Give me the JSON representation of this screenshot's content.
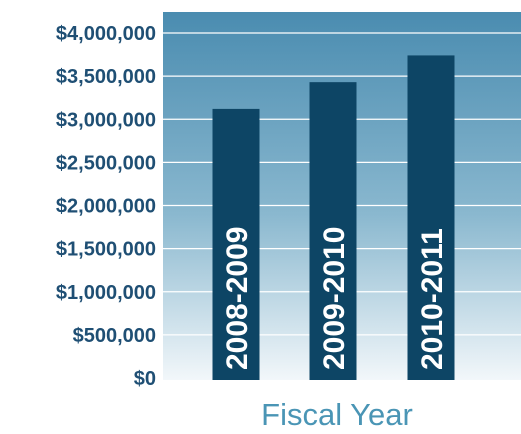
{
  "chart_data": {
    "type": "bar",
    "title": "",
    "xlabel": "Fiscal Year",
    "ylabel": "",
    "categories": [
      "2008-2009",
      "2009-2010",
      "2010-2011"
    ],
    "values": [
      3120000,
      3430000,
      3740000
    ],
    "ylim": [
      0,
      4000000
    ],
    "yticks": [
      0,
      500000,
      1000000,
      1500000,
      2000000,
      2500000,
      3000000,
      3500000,
      4000000
    ],
    "ytick_labels": [
      "$0",
      "$500,000",
      "$1,000,000",
      "$1,500,000",
      "$2,000,000",
      "$2,500,000",
      "$3,000,000",
      "$3,500,000",
      "$4,000,000"
    ],
    "grid": true,
    "legend": "none",
    "category_labels_inside_bars": true,
    "colors": {
      "bar": "#0d4565",
      "plot_background_top": "#4a8cb0",
      "plot_background_bottom": "#f2f7fa",
      "gridline": "#ffffff",
      "tick_label": "#1f4f74",
      "axis_label": "#4a95b5",
      "bar_label": "#ffffff"
    }
  }
}
